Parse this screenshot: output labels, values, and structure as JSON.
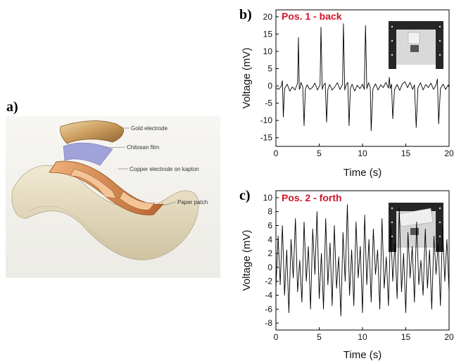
{
  "panel_a": {
    "letter": "a)",
    "callouts": {
      "gold": "Gold electrode",
      "chitosan": "Chitosan film",
      "copper": "Copper electrode on kapton",
      "paper": "Paper patch"
    },
    "colors": {
      "gold": "#c99a5a",
      "chitosan": "#9a9ad8",
      "copper": "#d8844a",
      "paper": "#e6dcc0"
    }
  },
  "chart_data": [
    {
      "type": "line",
      "panel_letter": "b)",
      "annotation": "Pos. 1 - back",
      "xlabel": "Time (s)",
      "ylabel": "Voltage (mV)",
      "xlim": [
        0,
        20
      ],
      "ylim": [
        -17.5,
        22
      ],
      "xticks": [
        0,
        5,
        10,
        15,
        20
      ],
      "yticks": [
        -15,
        -10,
        -5,
        0,
        5,
        10,
        15,
        20
      ],
      "grid": false,
      "series": [
        {
          "color": "#000000",
          "x": [
            0,
            0.3,
            0.6,
            0.75,
            0.85,
            1.0,
            1.3,
            1.6,
            1.9,
            2.2,
            2.5,
            2.6,
            2.7,
            2.8,
            2.9,
            3.1,
            3.25,
            3.4,
            3.6,
            3.9,
            4.2,
            4.5,
            4.8,
            5.1,
            5.2,
            5.35,
            5.5,
            5.7,
            5.85,
            6.0,
            6.2,
            6.5,
            6.8,
            7.1,
            7.4,
            7.7,
            7.8,
            7.95,
            8.1,
            8.3,
            8.45,
            8.6,
            8.8,
            9.1,
            9.4,
            9.7,
            10.0,
            10.2,
            10.35,
            10.5,
            10.7,
            10.9,
            11.0,
            11.2,
            11.5,
            11.8,
            12.1,
            12.4,
            12.7,
            13.0,
            13.1,
            13.2,
            13.35,
            13.5,
            13.7,
            14.0,
            14.3,
            14.6,
            14.9,
            15.2,
            15.5,
            15.8,
            16.0,
            16.2,
            16.4,
            16.7,
            17.0,
            17.3,
            17.6,
            17.9,
            18.2,
            18.5,
            18.65,
            18.8,
            19.0,
            19.3,
            19.6,
            19.9,
            20.0
          ],
          "y": [
            -0.5,
            -1.0,
            -0.2,
            1.5,
            -9.0,
            -0.8,
            0.5,
            -1.5,
            -0.3,
            -1.2,
            0.8,
            14.0,
            -1.0,
            -0.5,
            1.0,
            -0.3,
            -11.5,
            -1.0,
            0.3,
            -1.0,
            -0.5,
            0.8,
            -1.2,
            0.3,
            17.0,
            -1.0,
            0.2,
            0.8,
            -10.5,
            -1.0,
            0.4,
            -1.2,
            -0.3,
            0.9,
            -1.0,
            0.5,
            18.0,
            -1.2,
            0.3,
            1.0,
            -11.5,
            -0.8,
            0.5,
            -1.5,
            0.2,
            -0.8,
            0.5,
            -1.0,
            17.5,
            -0.8,
            0.9,
            -0.5,
            -13.0,
            -0.9,
            0.6,
            -1.2,
            0.3,
            -0.5,
            1.0,
            -0.6,
            2.5,
            -0.8,
            0.5,
            -9.5,
            -1.0,
            0.4,
            -1.3,
            0.6,
            1.2,
            -0.5,
            1.0,
            -1.0,
            0.3,
            -12.0,
            -0.6,
            0.9,
            -1.2,
            0.4,
            -0.5,
            0.8,
            -1.0,
            0.3,
            2.0,
            -11.0,
            -0.8,
            0.5,
            -1.0,
            0.3,
            -0.5
          ]
        }
      ]
    },
    {
      "type": "line",
      "panel_letter": "c)",
      "annotation": "Pos. 2 - forth",
      "xlabel": "Time (s)",
      "ylabel": "Voltage (mV)",
      "xlim": [
        0,
        20
      ],
      "ylim": [
        -9,
        11
      ],
      "xticks": [
        0,
        5,
        10,
        15,
        20
      ],
      "yticks": [
        -8,
        -6,
        -4,
        -2,
        0,
        2,
        4,
        6,
        8,
        10
      ],
      "grid": false,
      "series": [
        {
          "color": "#000000",
          "x": [
            0,
            0.25,
            0.5,
            0.75,
            1.0,
            1.25,
            1.5,
            1.75,
            2.0,
            2.25,
            2.5,
            2.75,
            3.0,
            3.25,
            3.5,
            3.75,
            4.0,
            4.25,
            4.5,
            4.75,
            5.0,
            5.25,
            5.5,
            5.75,
            6.0,
            6.25,
            6.5,
            6.75,
            7.0,
            7.25,
            7.5,
            7.75,
            8.0,
            8.25,
            8.5,
            8.75,
            9.0,
            9.25,
            9.5,
            9.75,
            10.0,
            10.25,
            10.5,
            10.75,
            11.0,
            11.25,
            11.5,
            11.75,
            12.0,
            12.25,
            12.5,
            12.75,
            13.0,
            13.25,
            13.5,
            13.75,
            14.0,
            14.25,
            14.5,
            14.75,
            15.0,
            15.25,
            15.5,
            15.75,
            16.0,
            16.25,
            16.5,
            16.75,
            17.0,
            17.25,
            17.5,
            17.75,
            18.0,
            18.25,
            18.5,
            18.75,
            19.0,
            19.25,
            19.5,
            19.75,
            20.0
          ],
          "y": [
            -3.0,
            4.5,
            -2.5,
            6.0,
            -4.0,
            2.5,
            -6.5,
            4.0,
            -1.5,
            7.0,
            -3.5,
            1.0,
            -5.0,
            6.5,
            -2.0,
            3.0,
            -6.0,
            5.5,
            -1.0,
            8.0,
            -4.5,
            2.0,
            -6.0,
            7.0,
            -2.5,
            3.5,
            -5.5,
            6.0,
            -3.0,
            1.5,
            -7.0,
            5.0,
            -2.0,
            9.0,
            -4.0,
            2.5,
            -5.5,
            6.5,
            -1.5,
            3.0,
            -6.5,
            7.5,
            -2.5,
            4.0,
            -5.0,
            5.5,
            -1.0,
            2.5,
            -6.0,
            7.0,
            -3.0,
            1.5,
            -5.5,
            6.0,
            -2.0,
            3.5,
            -4.5,
            8.5,
            -3.5,
            2.0,
            -6.5,
            5.0,
            -1.5,
            3.0,
            -5.0,
            6.5,
            -2.5,
            1.0,
            -4.0,
            5.5,
            -3.0,
            2.5,
            -6.0,
            4.5,
            -1.0,
            3.5,
            -5.5,
            6.0,
            -2.0,
            4.0,
            -3.5
          ]
        }
      ]
    }
  ]
}
